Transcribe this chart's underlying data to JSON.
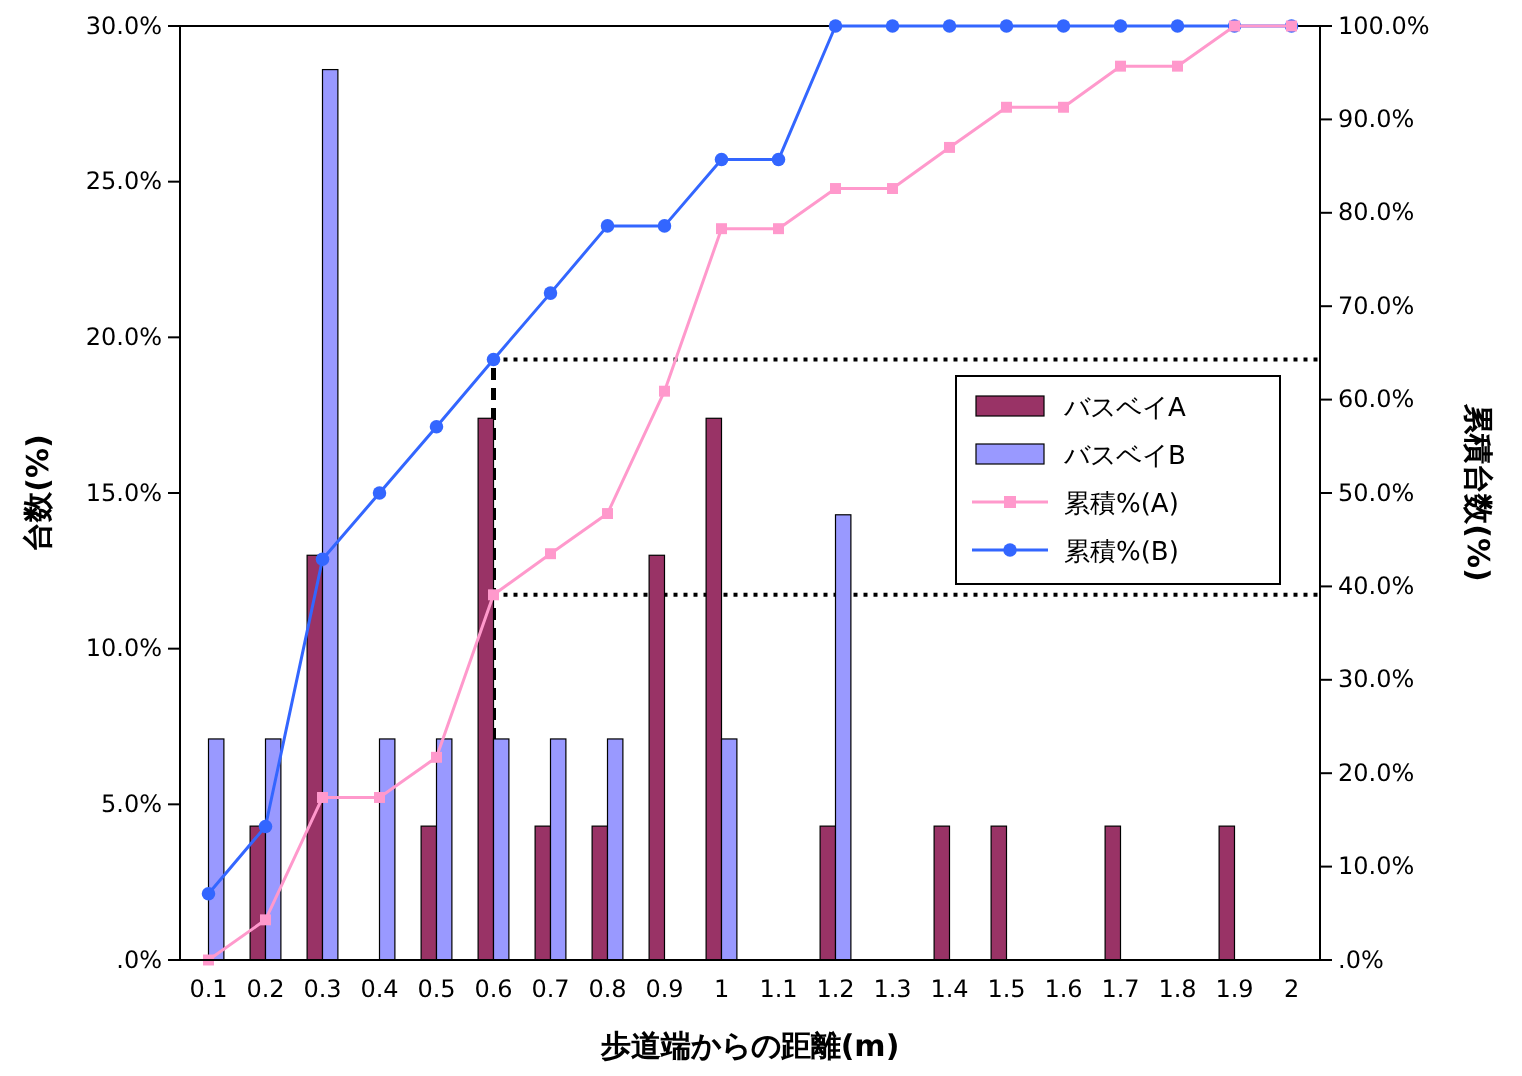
{
  "chart_data": {
    "type": "bar",
    "xlabel": "歩道端からの距離(m)",
    "ylabel": "台数(%)",
    "y2label": "累積台数(%)",
    "categories": [
      "0.1",
      "0.2",
      "0.3",
      "0.4",
      "0.5",
      "0.6",
      "0.7",
      "0.8",
      "0.9",
      "1",
      "1.1",
      "1.2",
      "1.3",
      "1.4",
      "1.5",
      "1.6",
      "1.7",
      "1.8",
      "1.9",
      "2"
    ],
    "series": [
      {
        "name": "バスベイA",
        "color": "#993366",
        "values": [
          null,
          4.3,
          13.0,
          null,
          4.3,
          17.4,
          4.3,
          4.3,
          13.0,
          17.4,
          null,
          4.3,
          null,
          4.3,
          4.3,
          null,
          4.3,
          null,
          4.3,
          null
        ]
      },
      {
        "name": "バスベイB",
        "color": "#9999ff",
        "values": [
          7.1,
          7.1,
          28.6,
          7.1,
          7.1,
          7.1,
          7.1,
          7.1,
          null,
          7.1,
          null,
          14.3,
          null,
          null,
          null,
          null,
          null,
          null,
          null,
          null
        ]
      },
      {
        "name": "累積%(A)",
        "type": "line",
        "axis": "y2",
        "marker": "square",
        "color": "#ff99cc",
        "values": [
          0,
          4.3,
          17.4,
          17.4,
          21.7,
          39.1,
          43.5,
          47.8,
          60.9,
          78.3,
          78.3,
          82.6,
          82.6,
          87.0,
          91.3,
          91.3,
          95.7,
          95.7,
          100,
          100
        ]
      },
      {
        "name": "累積%(B)",
        "type": "line",
        "axis": "y2",
        "marker": "circle",
        "color": "#3366ff",
        "values": [
          7.1,
          14.3,
          42.9,
          50,
          57.1,
          64.3,
          71.4,
          78.6,
          78.6,
          85.7,
          85.7,
          100,
          100,
          100,
          100,
          100,
          100,
          100,
          100,
          100
        ]
      }
    ],
    "ylim": [
      0,
      30
    ],
    "yticks": [
      {
        "value": 0,
        "label": ".0%"
      },
      {
        "value": 5,
        "label": "5.0%"
      },
      {
        "value": 10,
        "label": "10.0%"
      },
      {
        "value": 15,
        "label": "15.0%"
      },
      {
        "value": 20,
        "label": "20.0%"
      },
      {
        "value": 25,
        "label": "25.0%"
      },
      {
        "value": 30,
        "label": "30.0%"
      }
    ],
    "y2lim": [
      0,
      100
    ],
    "y2ticks": [
      {
        "value": 0,
        "label": ".0%"
      },
      {
        "value": 10,
        "label": "10.0%"
      },
      {
        "value": 20,
        "label": "20.0%"
      },
      {
        "value": 30,
        "label": "30.0%"
      },
      {
        "value": 40,
        "label": "40.0%"
      },
      {
        "value": 50,
        "label": "50.0%"
      },
      {
        "value": 60,
        "label": "60.0%"
      },
      {
        "value": 70,
        "label": "70.0%"
      },
      {
        "value": 80,
        "label": "80.0%"
      },
      {
        "value": 90,
        "label": "90.0%"
      },
      {
        "value": 100,
        "label": "100.0%"
      }
    ],
    "ref_lines": [
      {
        "axis": "y2",
        "value": 64.3,
        "line_style": "dotted",
        "color": "#000000"
      },
      {
        "axis": "y2",
        "value": 39.1,
        "line_style": "dotted",
        "color": "#000000"
      },
      {
        "axis": "x",
        "value": "0.6",
        "line_style": "dashed",
        "color": "#000000"
      }
    ],
    "legend": "right",
    "grid": false
  }
}
